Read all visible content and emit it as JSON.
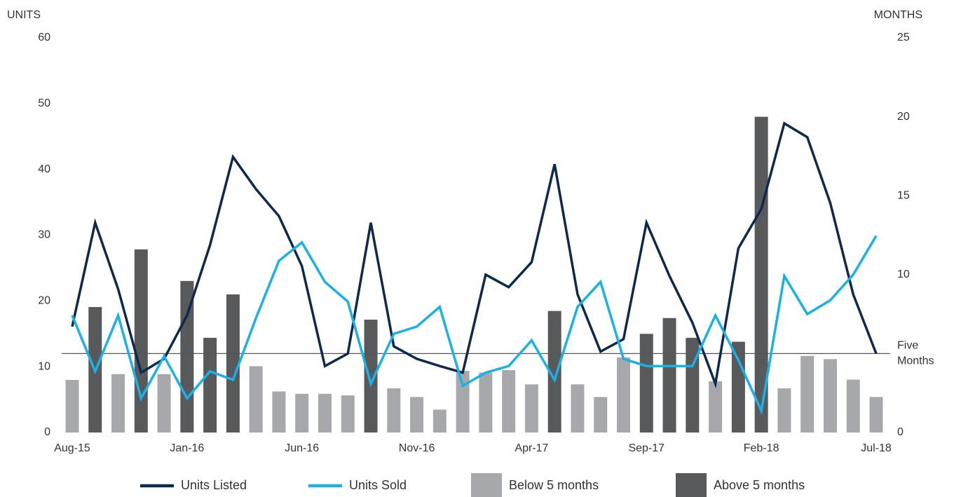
{
  "chart_data": {
    "type": "bar_line",
    "y_label": "UNITS",
    "y2_label": "MONTHS",
    "categories": [
      "Aug-15",
      null,
      null,
      null,
      null,
      "Jan-16",
      null,
      null,
      null,
      null,
      "Jun-16",
      null,
      null,
      null,
      null,
      "Nov-16",
      null,
      null,
      null,
      null,
      "Apr-17",
      null,
      null,
      null,
      null,
      "Sep-17",
      null,
      null,
      null,
      null,
      "Feb-18",
      null,
      null,
      null,
      null,
      "Jul-18"
    ],
    "series": [
      {
        "name": "Units Listed",
        "type": "line",
        "color": "#0b2a4e",
        "values": [
          16.1,
          31.9,
          21.8,
          9.1,
          11.2,
          17.8,
          28.5,
          41.9,
          37.0,
          32.9,
          25.3,
          10.1,
          12.0,
          31.9,
          13.1,
          11.2,
          10.1,
          9.1,
          24.0,
          22.1,
          25.9,
          40.8,
          21.0,
          12.3,
          14.2,
          31.9,
          23.8,
          16.7,
          7.4,
          28.0,
          34.0,
          47.0,
          44.9,
          34.9,
          21.0,
          12.0
        ]
      },
      {
        "name": "Units Sold",
        "type": "line",
        "color": "#1ab0e8",
        "values": [
          17.8,
          9.3,
          17.8,
          5.2,
          11.6,
          5.2,
          9.3,
          8.0,
          17.4,
          26.1,
          28.9,
          22.9,
          19.9,
          7.4,
          15.0,
          16.1,
          19.1,
          7.1,
          9.1,
          10.1,
          14.0,
          8.0,
          19.1,
          22.9,
          11.2,
          10.1,
          10.1,
          10.1,
          17.8,
          11.0,
          3.3,
          23.8,
          18.0,
          20.1,
          24.0,
          29.9
        ]
      },
      {
        "name": "Below 5 months",
        "type": "bar",
        "axis": "y2",
        "color": "#a6a8ab",
        "values": [
          3.33,
          null,
          3.7,
          null,
          3.7,
          null,
          null,
          null,
          4.2,
          2.6,
          2.45,
          2.45,
          2.35,
          null,
          2.8,
          2.25,
          1.45,
          3.9,
          3.8,
          3.95,
          3.05,
          null,
          3.05,
          2.25,
          4.75,
          null,
          null,
          null,
          3.25,
          null,
          null,
          2.8,
          4.85,
          4.65,
          3.35,
          2.25
        ]
      },
      {
        "name": "Above 5 months",
        "type": "bar",
        "axis": "y2",
        "color": "#58595b",
        "values": [
          null,
          7.95,
          null,
          11.6,
          null,
          9.6,
          6.0,
          8.75,
          null,
          null,
          null,
          null,
          null,
          7.15,
          null,
          null,
          null,
          null,
          null,
          null,
          null,
          7.7,
          null,
          null,
          null,
          6.25,
          7.25,
          6.0,
          null,
          5.75,
          20.0,
          null,
          null,
          null,
          null,
          null
        ]
      }
    ],
    "ylim": [
      0,
      60
    ],
    "yticks": [
      0,
      10,
      20,
      30,
      40,
      50,
      60
    ],
    "y2lim": [
      0,
      25
    ],
    "y2ticks": [
      0,
      10,
      15,
      20,
      25
    ],
    "reference_line": {
      "axis": "y2",
      "value": 5,
      "lines": [
        "Five",
        "Months"
      ],
      "color": "#555555"
    },
    "grid": false,
    "legend": "bottom"
  }
}
